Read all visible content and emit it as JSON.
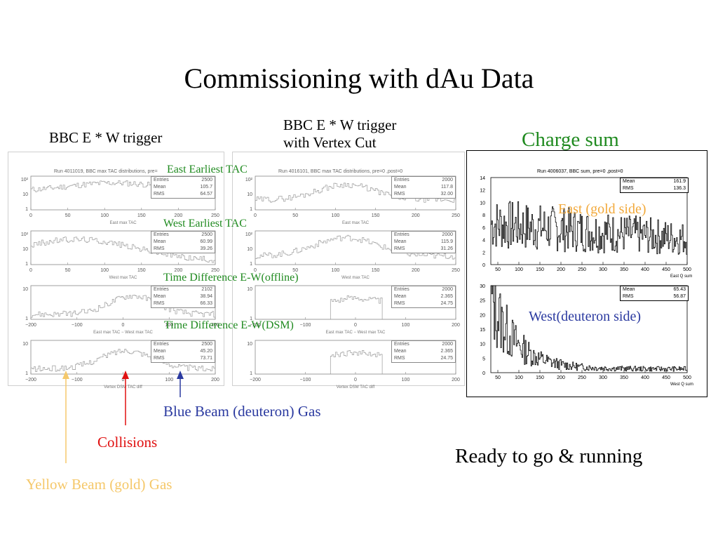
{
  "slide": {
    "title": "Commissioning with dAu Data",
    "left_col_label": "BBC E * W trigger",
    "mid_col_label_line1": "BBC E * W trigger",
    "mid_col_label_line2": "with Vertex Cut",
    "right_col_label": "Charge sum",
    "row_labels": [
      "East Earliest TAC",
      "West Earliest TAC",
      "Time Difference E-W(offline)",
      "Time Difference E-W(DSM)"
    ],
    "charge_east_label": "East (gold side)",
    "charge_west_label": "West(deuteron side)",
    "blue_beam": "Blue Beam (deuteron) Gas",
    "collisions": "Collisions",
    "yellow_beam": "Yellow Beam (gold) Gas",
    "ready": "Ready to go & running"
  },
  "colors": {
    "green": "#1f8a1f",
    "orange": "#f2a93b",
    "blue": "#2b3aa0",
    "red": "#e01010",
    "yellow": "#f5c86a"
  },
  "left_panel": {
    "run_title": "Run 4011019, BBC max TAC distributions, pre=",
    "plots": [
      {
        "name": "east-max-tac",
        "xlabel": "East max TAC",
        "ticks": [
          "0",
          "50",
          "100",
          "150",
          "200",
          "250"
        ],
        "ylog": [
          "10²",
          "10",
          "1"
        ],
        "stats": {
          "Entries": "2500",
          "Mean": "105.7",
          "RMS": "64.57"
        }
      },
      {
        "name": "west-max-tac",
        "xlabel": "West max TAC",
        "ticks": [
          "0",
          "50",
          "100",
          "150",
          "200",
          "250"
        ],
        "ylog": [
          "10²",
          "10",
          "1"
        ],
        "stats": {
          "Entries": "2500",
          "Mean": "60.99",
          "RMS": "39.26"
        }
      },
      {
        "name": "tac-diff",
        "xlabel": "East max TAC − West max TAC",
        "ticks": [
          "−200",
          "−100",
          "0",
          "100",
          "200"
        ],
        "ylog": [
          "10",
          "1"
        ],
        "stats": {
          "Entries": "2102",
          "Mean": "38.94",
          "RMS": "66.33"
        }
      },
      {
        "name": "dsm-tac-diff",
        "xlabel": "Vertex DSM TAC diff",
        "ticks": [
          "−200",
          "−100",
          "0",
          "100",
          "200"
        ],
        "ylog": [
          "10",
          "1"
        ],
        "stats": {
          "Entries": "2500",
          "Mean": "45.20",
          "RMS": "73.71"
        }
      }
    ]
  },
  "mid_panel": {
    "run_title": "Run 4016101, BBC max TAC distributions, pre=0 ,post=0",
    "plots": [
      {
        "name": "east-max-tac",
        "xlabel": "East max TAC",
        "ticks": [
          "0",
          "50",
          "100",
          "150",
          "200",
          "250"
        ],
        "ylog": [
          "10²",
          "10",
          "1"
        ],
        "stats": {
          "Entries": "2000",
          "Mean": "117.8",
          "RMS": "32.00"
        }
      },
      {
        "name": "west-max-tac",
        "xlabel": "West max TAC",
        "ticks": [
          "0",
          "50",
          "100",
          "150",
          "200",
          "250"
        ],
        "ylog": [
          "10²",
          "10",
          "1"
        ],
        "stats": {
          "Entries": "2000",
          "Mean": "115.9",
          "RMS": "31.26"
        }
      },
      {
        "name": "tac-diff",
        "xlabel": "East max TAC − West max TAC",
        "ticks": [
          "−200",
          "−100",
          "0",
          "100",
          "200"
        ],
        "ylog": [
          "10",
          "1"
        ],
        "stats": {
          "Entries": "2000",
          "Mean": "2.365",
          "RMS": "24.75"
        }
      },
      {
        "name": "dsm-tac-diff",
        "xlabel": "Vertex DSM TAC diff",
        "ticks": [
          "−200",
          "−100",
          "0",
          "100",
          "200"
        ],
        "ylog": [
          "10",
          "1"
        ],
        "stats": {
          "Entries": "2000",
          "Mean": "2.365",
          "RMS": "24.75"
        }
      }
    ]
  },
  "right_panel": {
    "run_title": "Run 4006037, BBC sum, pre=0 ,post=0",
    "east": {
      "xlabel": "East Q sum",
      "ticks": [
        "50",
        "100",
        "150",
        "200",
        "250",
        "300",
        "350",
        "400",
        "450",
        "500"
      ],
      "yticks": [
        "14",
        "12",
        "10",
        "8",
        "6",
        "4",
        "2",
        "0"
      ],
      "stats": {
        "Mean": "161.9",
        "RMS": "136.3"
      }
    },
    "west": {
      "xlabel": "West Q sum",
      "ticks": [
        "50",
        "100",
        "150",
        "200",
        "250",
        "300",
        "350",
        "400",
        "450",
        "500"
      ],
      "yticks": [
        "30",
        "25",
        "20",
        "15",
        "10",
        "5",
        "0"
      ],
      "stats": {
        "Mean": "65.43",
        "RMS": "56.87"
      }
    }
  }
}
